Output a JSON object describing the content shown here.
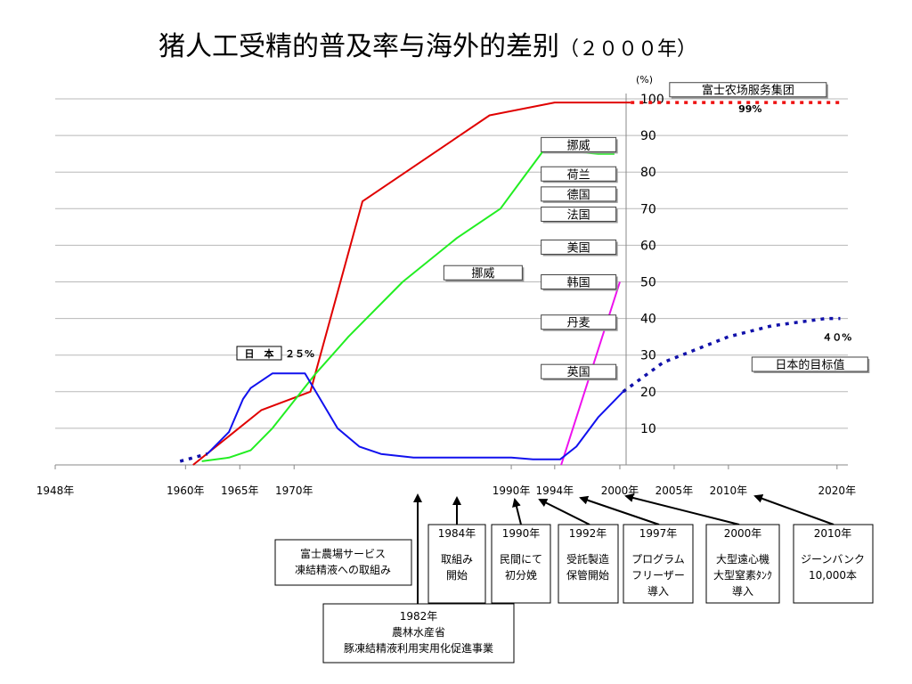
{
  "chart_data": {
    "type": "line",
    "title": "猪人工受精的普及率与海外的差别",
    "title_paren": "（２０００年）",
    "y_unit": "(%)",
    "y_ticks": [
      10,
      20,
      30,
      40,
      50,
      60,
      70,
      80,
      90,
      100
    ],
    "ylim": [
      0,
      100
    ],
    "xlim": [
      1948,
      2021
    ],
    "x_ticks": [
      {
        "x": 1948,
        "label": "1948年"
      },
      {
        "x": 1960,
        "label": "1960年"
      },
      {
        "x": 1965,
        "label": "1965年"
      },
      {
        "x": 1970,
        "label": "1970年"
      },
      {
        "x": 1990,
        "label": "1990年"
      },
      {
        "x": 1994,
        "label": "1994年"
      },
      {
        "x": 2000,
        "label": "2000年"
      },
      {
        "x": 2005,
        "label": "2005年"
      },
      {
        "x": 2010,
        "label": "2010年"
      },
      {
        "x": 2020,
        "label": "2020年"
      }
    ],
    "grid": true,
    "series": [
      {
        "key": "red",
        "color": "#e00000",
        "style": "solid",
        "points": [
          [
            1960.7,
            0
          ],
          [
            1967,
            15
          ],
          [
            1971.5,
            20
          ],
          [
            1976.3,
            72
          ],
          [
            1988,
            95.5
          ],
          [
            1994,
            99
          ],
          [
            2001,
            99
          ]
        ]
      },
      {
        "key": "green",
        "color": "#22ee22",
        "style": "solid",
        "points": [
          [
            1961.5,
            1
          ],
          [
            1964,
            2
          ],
          [
            1966,
            4
          ],
          [
            1968,
            10
          ],
          [
            1972,
            25
          ],
          [
            1975,
            35
          ],
          [
            1980,
            50
          ],
          [
            1985,
            62
          ],
          [
            1989,
            70
          ],
          [
            1991,
            78
          ],
          [
            1993,
            86
          ],
          [
            1994.3,
            86
          ],
          [
            1998,
            85
          ],
          [
            1999.5,
            85
          ]
        ]
      },
      {
        "key": "magenta",
        "color": "#ee11ee",
        "style": "solid",
        "points": [
          [
            1994.6,
            0
          ],
          [
            2000,
            50
          ]
        ]
      },
      {
        "key": "japan",
        "color": "#1111ee",
        "style": "solid",
        "points": [
          [
            1962,
            3
          ],
          [
            1964,
            9
          ],
          [
            1965.3,
            18
          ],
          [
            1966,
            21
          ],
          [
            1968,
            25
          ],
          [
            1971,
            25
          ],
          [
            1972,
            20
          ],
          [
            1974,
            10
          ],
          [
            1976,
            5
          ],
          [
            1978,
            3
          ],
          [
            1981,
            2
          ],
          [
            1990,
            2
          ],
          [
            1992,
            1.5
          ],
          [
            1994.5,
            1.5
          ],
          [
            1996,
            5
          ],
          [
            1998,
            13
          ],
          [
            2000.3,
            20
          ]
        ]
      },
      {
        "key": "japan-early",
        "color": "#1111aa",
        "style": "dotted",
        "points": [
          [
            1959.5,
            1
          ],
          [
            1962,
            3
          ]
        ]
      },
      {
        "key": "japan-target",
        "color": "#1111aa",
        "style": "dotted",
        "points": [
          [
            2000.3,
            20
          ],
          [
            2004,
            28
          ],
          [
            2010,
            35
          ],
          [
            2014,
            38
          ],
          [
            2019,
            40
          ],
          [
            2020.3,
            40
          ]
        ]
      },
      {
        "key": "fuji-target",
        "color": "#ee1111",
        "style": "dotted",
        "points": [
          [
            2001,
            99
          ],
          [
            2020.3,
            99
          ]
        ]
      }
    ],
    "annotations": [
      {
        "text": "富士农场服务集团",
        "x": 2011.8,
        "y": 102.5,
        "w": 176
      },
      {
        "text": "挪威",
        "x": 1996.2,
        "y": 87.5,
        "w": 84
      },
      {
        "text": "荷兰",
        "x": 1996.2,
        "y": 79.5,
        "w": 84
      },
      {
        "text": "德国",
        "x": 1996.2,
        "y": 74,
        "w": 84
      },
      {
        "text": "法国",
        "x": 1996.2,
        "y": 68.5,
        "w": 84
      },
      {
        "text": "美国",
        "x": 1996.2,
        "y": 59.5,
        "w": 84
      },
      {
        "text": "韩国",
        "x": 1996.2,
        "y": 50,
        "w": 84
      },
      {
        "text": "丹麦",
        "x": 1996.2,
        "y": 39,
        "w": 84
      },
      {
        "text": "英国",
        "x": 1996.2,
        "y": 25.5,
        "w": 84
      },
      {
        "text": "挪威",
        "x": 1987.4,
        "y": 52.5,
        "w": 88
      },
      {
        "text": "日本的目标值",
        "x": 2017.5,
        "y": 27.5,
        "w": 130
      }
    ],
    "value_labels": [
      {
        "text": "99%",
        "x": 2012,
        "y": 96.3
      },
      {
        "text": "４０%",
        "x": 2020,
        "y": 34
      }
    ],
    "japan_label": {
      "box": "日　本",
      "text": "２５%"
    }
  },
  "events": [
    {
      "id": "e1982",
      "year": "1982年",
      "lines": [
        "農林水産省",
        "豚凍結精液利用実用化促進事業"
      ]
    },
    {
      "id": "efuji",
      "year": "",
      "lines": [
        "富士農場サービス",
        "凍結精液への取組み"
      ]
    },
    {
      "id": "e1984",
      "year": "1984年",
      "lines": [
        "取組み",
        "開始"
      ]
    },
    {
      "id": "e1990",
      "year": "1990年",
      "lines": [
        "民間にて",
        "初分娩"
      ]
    },
    {
      "id": "e1992",
      "year": "1992年",
      "lines": [
        "受託製造",
        "保管開始"
      ]
    },
    {
      "id": "e1997",
      "year": "1997年",
      "lines": [
        "プログラム",
        "フリーザー",
        "導入"
      ]
    },
    {
      "id": "e2000",
      "year": "2000年",
      "lines": [
        "大型遠心機",
        "大型窒素ﾀﾝｸ",
        "導入"
      ]
    },
    {
      "id": "e2010",
      "year": "2010年",
      "lines": [
        "ジーンバンク",
        "10,000本"
      ]
    }
  ]
}
